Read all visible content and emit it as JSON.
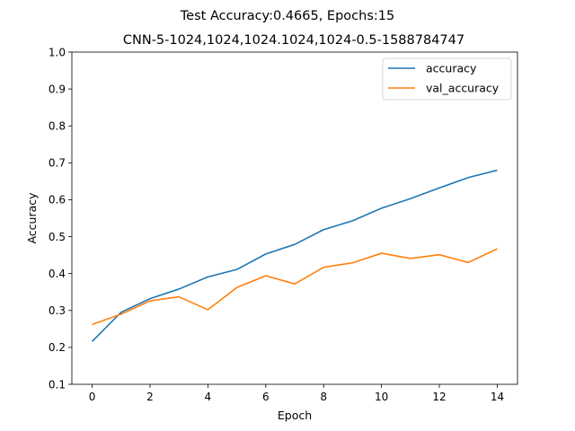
{
  "chart_data": {
    "type": "line",
    "title": "Test Accuracy:0.4665, Epochs:15",
    "subtitle": "CNN-5-1024,1024,1024.1024,1024-0.5-1588784747",
    "xlabel": "Epoch",
    "ylabel": "Accuracy",
    "xlim": [
      -0.7,
      14.7
    ],
    "ylim": [
      0.1,
      1.0
    ],
    "xticks": [
      "0",
      "2",
      "4",
      "6",
      "8",
      "10",
      "12",
      "14"
    ],
    "yticks": [
      "0.1",
      "0.2",
      "0.3",
      "0.4",
      "0.5",
      "0.6",
      "0.7",
      "0.8",
      "0.9",
      "1.0"
    ],
    "grid": false,
    "legend_position": "top-right",
    "x": [
      0,
      1,
      2,
      3,
      4,
      5,
      6,
      7,
      8,
      9,
      10,
      11,
      12,
      13,
      14
    ],
    "series": [
      {
        "name": "accuracy",
        "color": "#1f77b4",
        "values": [
          0.216,
          0.295,
          0.332,
          0.358,
          0.391,
          0.411,
          0.453,
          0.479,
          0.519,
          0.543,
          0.577,
          0.603,
          0.632,
          0.66,
          0.68
        ]
      },
      {
        "name": "val_accuracy",
        "color": "#ff7f0e",
        "values": [
          0.262,
          0.29,
          0.326,
          0.337,
          0.302,
          0.362,
          0.394,
          0.372,
          0.417,
          0.429,
          0.455,
          0.441,
          0.451,
          0.43,
          0.467
        ]
      }
    ]
  }
}
